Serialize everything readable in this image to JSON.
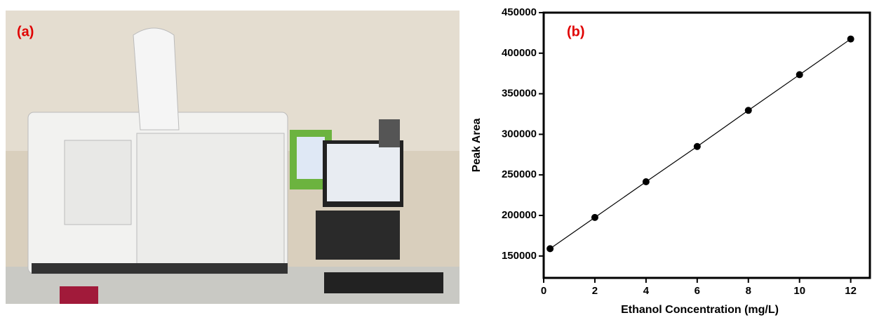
{
  "panel_a": {
    "label": "(a)"
  },
  "chart_data": {
    "type": "scatter",
    "annotation": "(b)",
    "x_label": "Ethanol Concentration (mg/L)",
    "y_label": "Peak Area",
    "x": [
      0.25,
      2,
      4,
      6,
      8,
      10,
      12
    ],
    "series": [
      {
        "color": "#000000",
        "values": [
          159000,
          197500,
          241500,
          285000,
          329500,
          373500,
          417500
        ]
      }
    ],
    "xlim": [
      0,
      12.75
    ],
    "ylim": [
      123000,
      450000
    ],
    "xticks": [
      0,
      2,
      4,
      6,
      8,
      10,
      12
    ],
    "yticks": [
      150000,
      200000,
      250000,
      300000,
      350000,
      400000,
      450000
    ],
    "connect": true
  }
}
